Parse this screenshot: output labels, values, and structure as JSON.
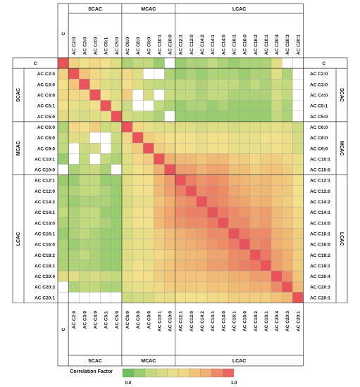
{
  "chart_data": {
    "type": "heatmap",
    "labels": [
      "C",
      "AC C2:0",
      "AC C3:0",
      "AC C4:0",
      "AC C5:1",
      "AC C5:0",
      "AC C6:0",
      "AC C8:0",
      "AC C9:0",
      "AC C10:1",
      "AC C10:0",
      "AC C12:1",
      "AC C12:0",
      "AC C14:2",
      "AC C14:1",
      "AC C14:0",
      "AC C16:1",
      "AC C16:0",
      "AC C18:2",
      "AC C18:1",
      "AC C20:4",
      "AC C20:3",
      "AC C20:1"
    ],
    "groups": [
      {
        "name": "SCAC",
        "start": 1,
        "end": 5
      },
      {
        "name": "MCAC",
        "start": 6,
        "end": 10
      },
      {
        "name": "LCAC",
        "start": 11,
        "end": 22
      }
    ],
    "colorbar": {
      "title": "Correlation Factor",
      "min_label": "0.0",
      "max_label": "1.0",
      "min": 0.0,
      "max": 1.0,
      "colors": [
        "#5cb85c",
        "#c3d97e",
        "#f2e18a",
        "#f0b070",
        "#e8545a"
      ]
    },
    "matrix": [
      [
        1.0,
        0.58,
        0.5,
        0.55,
        0.5,
        0.4,
        0.2,
        0.25,
        0.25,
        0.15,
        -1,
        0.15,
        0.2,
        0.2,
        0.25,
        0.2,
        0.15,
        0.2,
        0.2,
        0.2,
        0.4,
        -1,
        -1
      ],
      [
        0.58,
        1.0,
        0.65,
        0.55,
        0.45,
        0.4,
        0.55,
        0.4,
        -1,
        -1,
        0.2,
        0.15,
        0.2,
        0.15,
        0.2,
        0.2,
        0.2,
        0.15,
        0.2,
        0.2,
        0.4,
        0.2,
        -1
      ],
      [
        0.5,
        0.65,
        1.0,
        0.55,
        0.4,
        0.35,
        0.5,
        0.4,
        0.3,
        0.25,
        0.25,
        0.25,
        0.25,
        0.2,
        0.25,
        0.25,
        0.25,
        0.2,
        0.25,
        0.2,
        0.3,
        0.25,
        -1
      ],
      [
        0.55,
        0.55,
        0.55,
        1.0,
        0.5,
        0.4,
        0.6,
        -1,
        0.35,
        -1,
        0.3,
        0.25,
        0.25,
        0.2,
        0.25,
        0.25,
        0.2,
        0.2,
        0.2,
        0.2,
        0.35,
        0.25,
        -1
      ],
      [
        0.5,
        0.45,
        0.4,
        0.5,
        1.0,
        0.45,
        0.3,
        -1,
        -1,
        0.25,
        0.2,
        0.15,
        0.2,
        0.2,
        0.15,
        0.2,
        0.15,
        0.15,
        0.15,
        0.15,
        0.3,
        0.2,
        -1
      ],
      [
        0.4,
        0.4,
        0.35,
        0.4,
        0.45,
        1.0,
        0.35,
        0.3,
        0.25,
        0.2,
        -1,
        0.15,
        0.15,
        0.15,
        0.15,
        0.15,
        0.15,
        0.15,
        0.15,
        0.15,
        0.25,
        0.2,
        -1
      ],
      [
        0.2,
        0.55,
        0.5,
        0.6,
        0.3,
        0.35,
        1.0,
        0.55,
        0.45,
        0.4,
        0.4,
        0.4,
        0.4,
        0.35,
        0.4,
        0.4,
        0.35,
        0.4,
        0.4,
        0.4,
        0.45,
        0.4,
        0.3
      ],
      [
        0.25,
        0.4,
        0.4,
        -1,
        -1,
        0.3,
        0.55,
        1.0,
        0.6,
        0.55,
        0.5,
        0.5,
        0.5,
        0.45,
        0.5,
        0.5,
        0.45,
        0.45,
        0.45,
        0.5,
        0.5,
        0.45,
        0.35
      ],
      [
        0.25,
        -1,
        0.3,
        0.35,
        -1,
        0.25,
        0.45,
        0.6,
        1.0,
        0.6,
        0.55,
        0.5,
        0.5,
        0.45,
        0.5,
        0.5,
        0.45,
        0.45,
        0.45,
        0.45,
        0.5,
        0.45,
        0.35
      ],
      [
        0.15,
        -1,
        0.25,
        -1,
        0.25,
        0.2,
        0.4,
        0.55,
        0.6,
        1.0,
        0.75,
        0.7,
        0.7,
        0.65,
        0.7,
        0.7,
        0.6,
        0.6,
        0.55,
        0.6,
        0.6,
        0.55,
        0.45
      ],
      [
        -1,
        0.2,
        0.25,
        0.3,
        0.2,
        -1,
        0.4,
        0.5,
        0.55,
        0.75,
        1.0,
        0.8,
        0.8,
        0.75,
        0.78,
        0.78,
        0.68,
        0.68,
        0.6,
        0.65,
        0.65,
        0.6,
        0.45
      ],
      [
        0.15,
        0.15,
        0.25,
        0.25,
        0.15,
        0.15,
        0.4,
        0.5,
        0.5,
        0.7,
        0.8,
        1.0,
        0.88,
        0.82,
        0.85,
        0.82,
        0.75,
        0.72,
        0.68,
        0.7,
        0.65,
        0.62,
        0.5
      ],
      [
        0.2,
        0.2,
        0.25,
        0.25,
        0.2,
        0.15,
        0.4,
        0.5,
        0.5,
        0.7,
        0.8,
        0.88,
        1.0,
        0.85,
        0.88,
        0.85,
        0.78,
        0.75,
        0.7,
        0.72,
        0.65,
        0.62,
        0.5
      ],
      [
        0.2,
        0.15,
        0.2,
        0.2,
        0.2,
        0.15,
        0.35,
        0.45,
        0.45,
        0.65,
        0.75,
        0.82,
        0.85,
        1.0,
        0.88,
        0.85,
        0.8,
        0.78,
        0.72,
        0.75,
        0.65,
        0.6,
        0.5
      ],
      [
        0.25,
        0.2,
        0.25,
        0.25,
        0.15,
        0.15,
        0.4,
        0.5,
        0.5,
        0.7,
        0.78,
        0.85,
        0.88,
        0.88,
        1.0,
        0.9,
        0.85,
        0.82,
        0.78,
        0.8,
        0.7,
        0.65,
        0.55
      ],
      [
        0.2,
        0.2,
        0.25,
        0.25,
        0.2,
        0.15,
        0.4,
        0.5,
        0.5,
        0.7,
        0.78,
        0.82,
        0.85,
        0.85,
        0.9,
        1.0,
        0.85,
        0.85,
        0.78,
        0.8,
        0.7,
        0.65,
        0.55
      ],
      [
        0.15,
        0.2,
        0.25,
        0.2,
        0.15,
        0.15,
        0.35,
        0.45,
        0.45,
        0.6,
        0.68,
        0.75,
        0.78,
        0.8,
        0.85,
        0.85,
        1.0,
        0.9,
        0.85,
        0.85,
        0.75,
        0.7,
        0.6
      ],
      [
        0.2,
        0.15,
        0.2,
        0.2,
        0.15,
        0.15,
        0.4,
        0.45,
        0.45,
        0.6,
        0.68,
        0.72,
        0.75,
        0.78,
        0.82,
        0.85,
        0.9,
        1.0,
        0.85,
        0.88,
        0.75,
        0.7,
        0.6
      ],
      [
        0.2,
        0.2,
        0.25,
        0.2,
        0.15,
        0.15,
        0.4,
        0.45,
        0.45,
        0.55,
        0.6,
        0.68,
        0.7,
        0.72,
        0.78,
        0.78,
        0.85,
        0.85,
        1.0,
        0.9,
        0.8,
        0.75,
        0.6
      ],
      [
        0.2,
        0.2,
        0.2,
        0.2,
        0.15,
        0.15,
        0.4,
        0.5,
        0.45,
        0.6,
        0.65,
        0.7,
        0.72,
        0.75,
        0.8,
        0.8,
        0.85,
        0.88,
        0.9,
        1.0,
        0.8,
        0.75,
        0.6
      ],
      [
        0.4,
        0.4,
        0.3,
        0.35,
        0.3,
        0.25,
        0.45,
        0.5,
        0.5,
        0.6,
        0.65,
        0.65,
        0.65,
        0.65,
        0.7,
        0.7,
        0.75,
        0.75,
        0.8,
        0.8,
        1.0,
        0.85,
        0.65
      ],
      [
        -1,
        0.2,
        0.25,
        0.25,
        0.2,
        0.2,
        0.4,
        0.45,
        0.45,
        0.55,
        0.6,
        0.62,
        0.62,
        0.6,
        0.65,
        0.65,
        0.7,
        0.7,
        0.75,
        0.75,
        0.85,
        1.0,
        0.7
      ],
      [
        -1,
        -1,
        -1,
        -1,
        -1,
        -1,
        0.3,
        0.35,
        0.35,
        0.45,
        0.45,
        0.5,
        0.5,
        0.5,
        0.55,
        0.55,
        0.6,
        0.6,
        0.6,
        0.6,
        0.65,
        0.7,
        1.0
      ]
    ],
    "missing_value": -1
  }
}
